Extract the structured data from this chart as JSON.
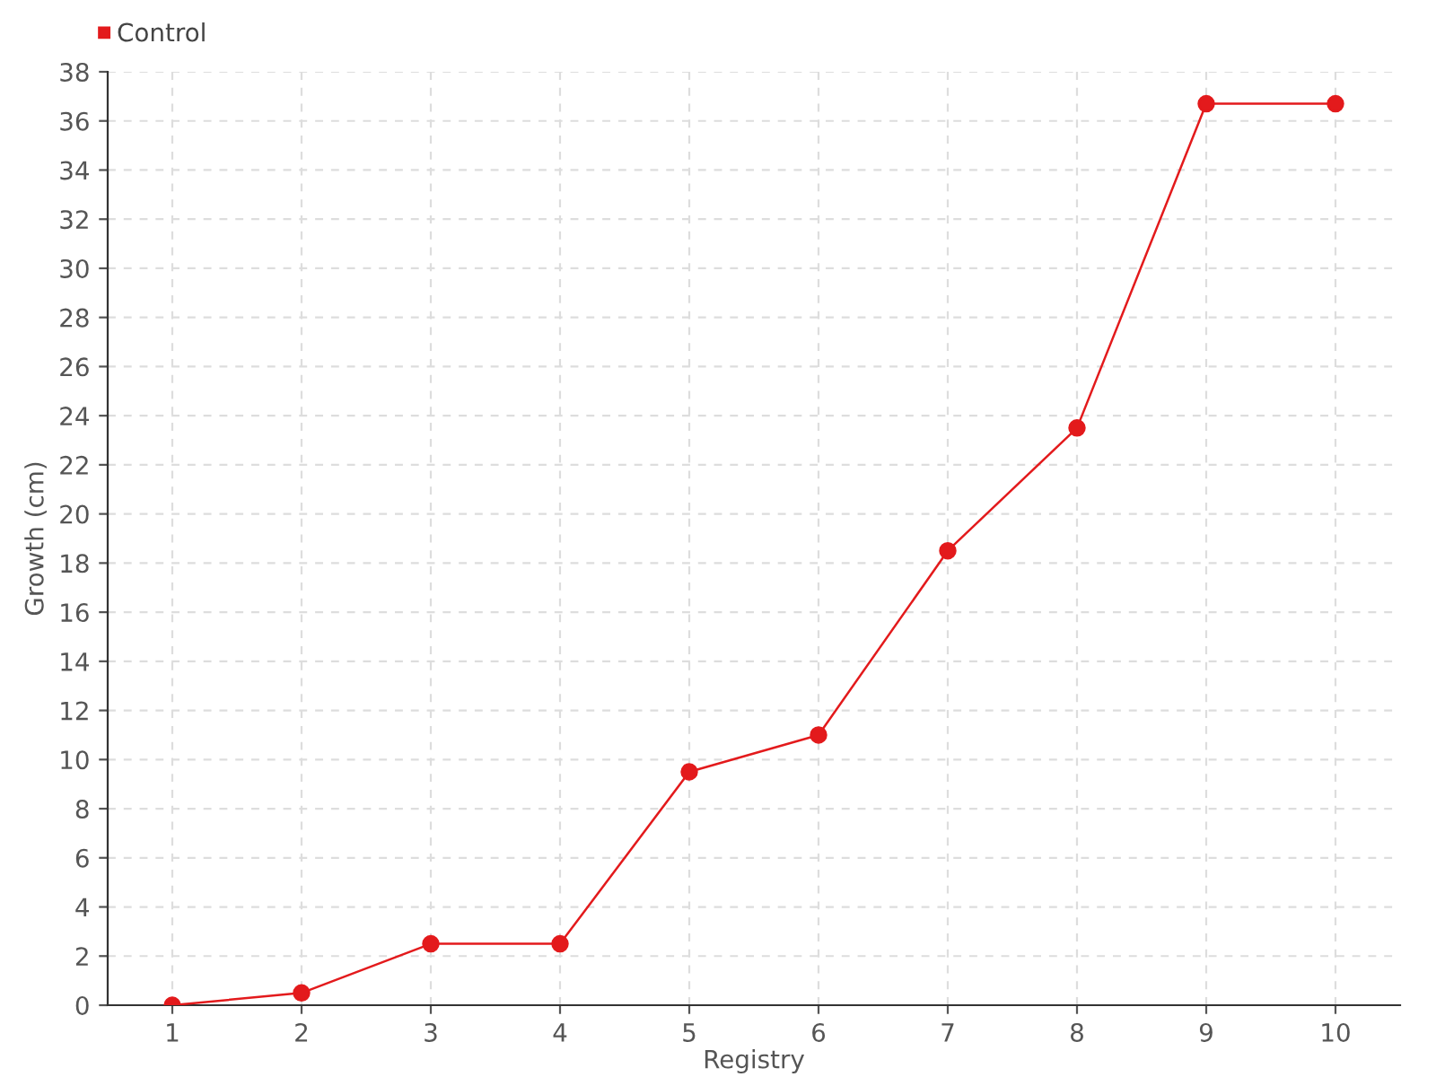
{
  "chart_data": {
    "type": "line",
    "xlabel": "Registry",
    "ylabel": "Growth (cm)",
    "categories": [
      "1",
      "2",
      "3",
      "4",
      "5",
      "6",
      "7",
      "8",
      "9",
      "10"
    ],
    "series": [
      {
        "name": "Control",
        "color": "#e31a1c",
        "values": [
          0,
          0.5,
          2.5,
          2.5,
          9.5,
          11,
          18.5,
          23.5,
          36.7,
          36.7
        ]
      }
    ],
    "ylim": [
      0,
      38
    ],
    "yticks": [
      0,
      2,
      4,
      6,
      8,
      10,
      12,
      14,
      16,
      18,
      20,
      22,
      24,
      26,
      28,
      30,
      32,
      34,
      36,
      38
    ],
    "grid": true,
    "legend": "top left",
    "marker": "circle",
    "line_style": "solid"
  }
}
